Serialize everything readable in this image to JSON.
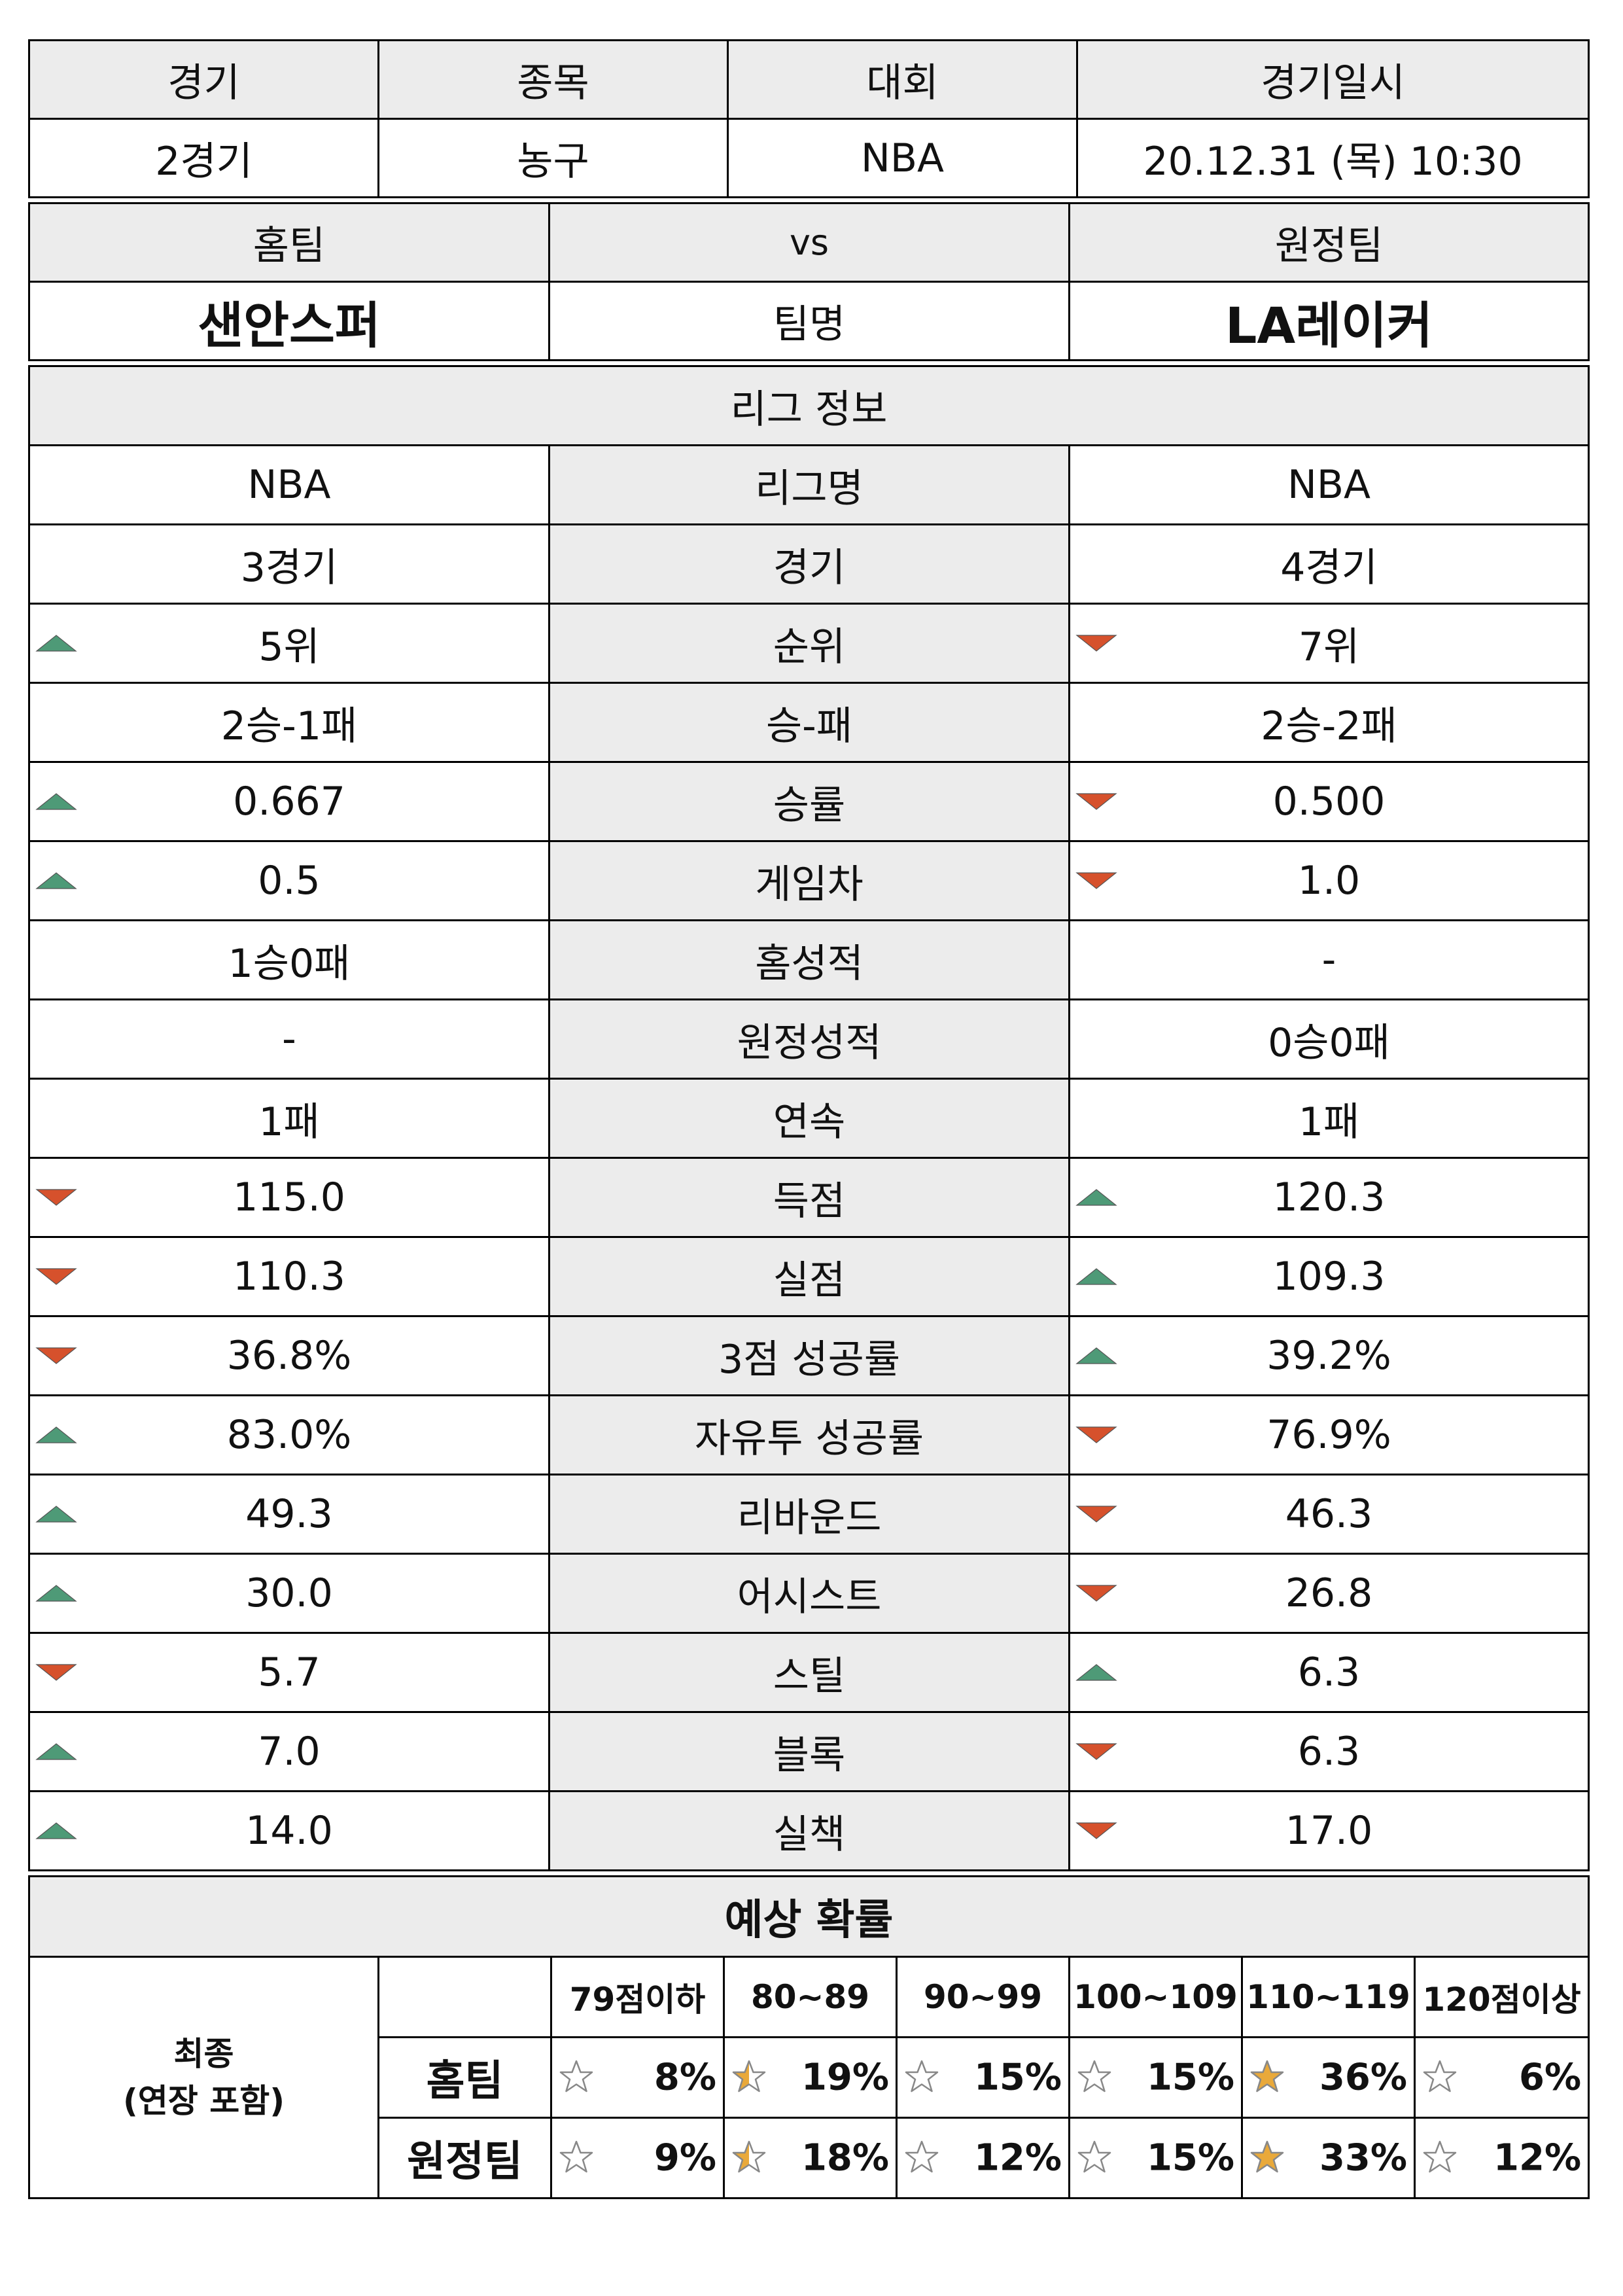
{
  "match": {
    "headers": [
      "경기",
      "종목",
      "대회",
      "경기일시"
    ],
    "values": [
      "2경기",
      "농구",
      "NBA",
      "20.12.31 (목) 10:30"
    ]
  },
  "teams": {
    "home_label": "홈팀",
    "vs_label": "vs",
    "away_label": "원정팀",
    "home_name": "샌안스퍼",
    "name_label": "팀명",
    "away_name": "LA레이커"
  },
  "league": {
    "title": "리그 정보",
    "rows": [
      {
        "label": "리그명",
        "home": "NBA",
        "away": "NBA",
        "home_trend": "",
        "away_trend": ""
      },
      {
        "label": "경기",
        "home": "3경기",
        "away": "4경기",
        "home_trend": "",
        "away_trend": ""
      },
      {
        "label": "순위",
        "home": "5위",
        "away": "7위",
        "home_trend": "up",
        "away_trend": "down"
      },
      {
        "label": "승-패",
        "home": "2승-1패",
        "away": "2승-2패",
        "home_trend": "",
        "away_trend": ""
      },
      {
        "label": "승률",
        "home": "0.667",
        "away": "0.500",
        "home_trend": "up",
        "away_trend": "down"
      },
      {
        "label": "게임차",
        "home": "0.5",
        "away": "1.0",
        "home_trend": "up",
        "away_trend": "down"
      },
      {
        "label": "홈성적",
        "home": "1승0패",
        "away": "-",
        "home_trend": "",
        "away_trend": ""
      },
      {
        "label": "원정성적",
        "home": "-",
        "away": "0승0패",
        "home_trend": "",
        "away_trend": ""
      },
      {
        "label": "연속",
        "home": "1패",
        "away": "1패",
        "home_trend": "",
        "away_trend": ""
      },
      {
        "label": "득점",
        "home": "115.0",
        "away": "120.3",
        "home_trend": "down",
        "away_trend": "up"
      },
      {
        "label": "실점",
        "home": "110.3",
        "away": "109.3",
        "home_trend": "down",
        "away_trend": "up"
      },
      {
        "label": "3점 성공률",
        "home": "36.8%",
        "away": "39.2%",
        "home_trend": "down",
        "away_trend": "up"
      },
      {
        "label": "자유투 성공률",
        "home": "83.0%",
        "away": "76.9%",
        "home_trend": "up",
        "away_trend": "down"
      },
      {
        "label": "리바운드",
        "home": "49.3",
        "away": "46.3",
        "home_trend": "up",
        "away_trend": "down"
      },
      {
        "label": "어시스트",
        "home": "30.0",
        "away": "26.8",
        "home_trend": "up",
        "away_trend": "down"
      },
      {
        "label": "스틸",
        "home": "5.7",
        "away": "6.3",
        "home_trend": "down",
        "away_trend": "up"
      },
      {
        "label": "블록",
        "home": "7.0",
        "away": "6.3",
        "home_trend": "up",
        "away_trend": "down"
      },
      {
        "label": "실책",
        "home": "14.0",
        "away": "17.0",
        "home_trend": "up",
        "away_trend": "down"
      }
    ]
  },
  "prob": {
    "title": "예상 확률",
    "final_label_1": "최종",
    "final_label_2": "(연장 포함)",
    "ranges": [
      "79점이하",
      "80~89",
      "90~99",
      "100~109",
      "110~119",
      "120점이상"
    ],
    "home_label": "홈팀",
    "away_label": "원정팀",
    "home": [
      {
        "pct": "8%",
        "star": "empty"
      },
      {
        "pct": "19%",
        "star": "half"
      },
      {
        "pct": "15%",
        "star": "empty"
      },
      {
        "pct": "15%",
        "star": "empty"
      },
      {
        "pct": "36%",
        "star": "full"
      },
      {
        "pct": "6%",
        "star": "empty"
      }
    ],
    "away": [
      {
        "pct": "9%",
        "star": "empty"
      },
      {
        "pct": "18%",
        "star": "half"
      },
      {
        "pct": "12%",
        "star": "empty"
      },
      {
        "pct": "15%",
        "star": "empty"
      },
      {
        "pct": "33%",
        "star": "full"
      },
      {
        "pct": "12%",
        "star": "empty"
      }
    ]
  },
  "colors": {
    "up": "#4e9a77",
    "down": "#d6512c",
    "star": "#e9a93a",
    "header_bg": "#ececec"
  }
}
